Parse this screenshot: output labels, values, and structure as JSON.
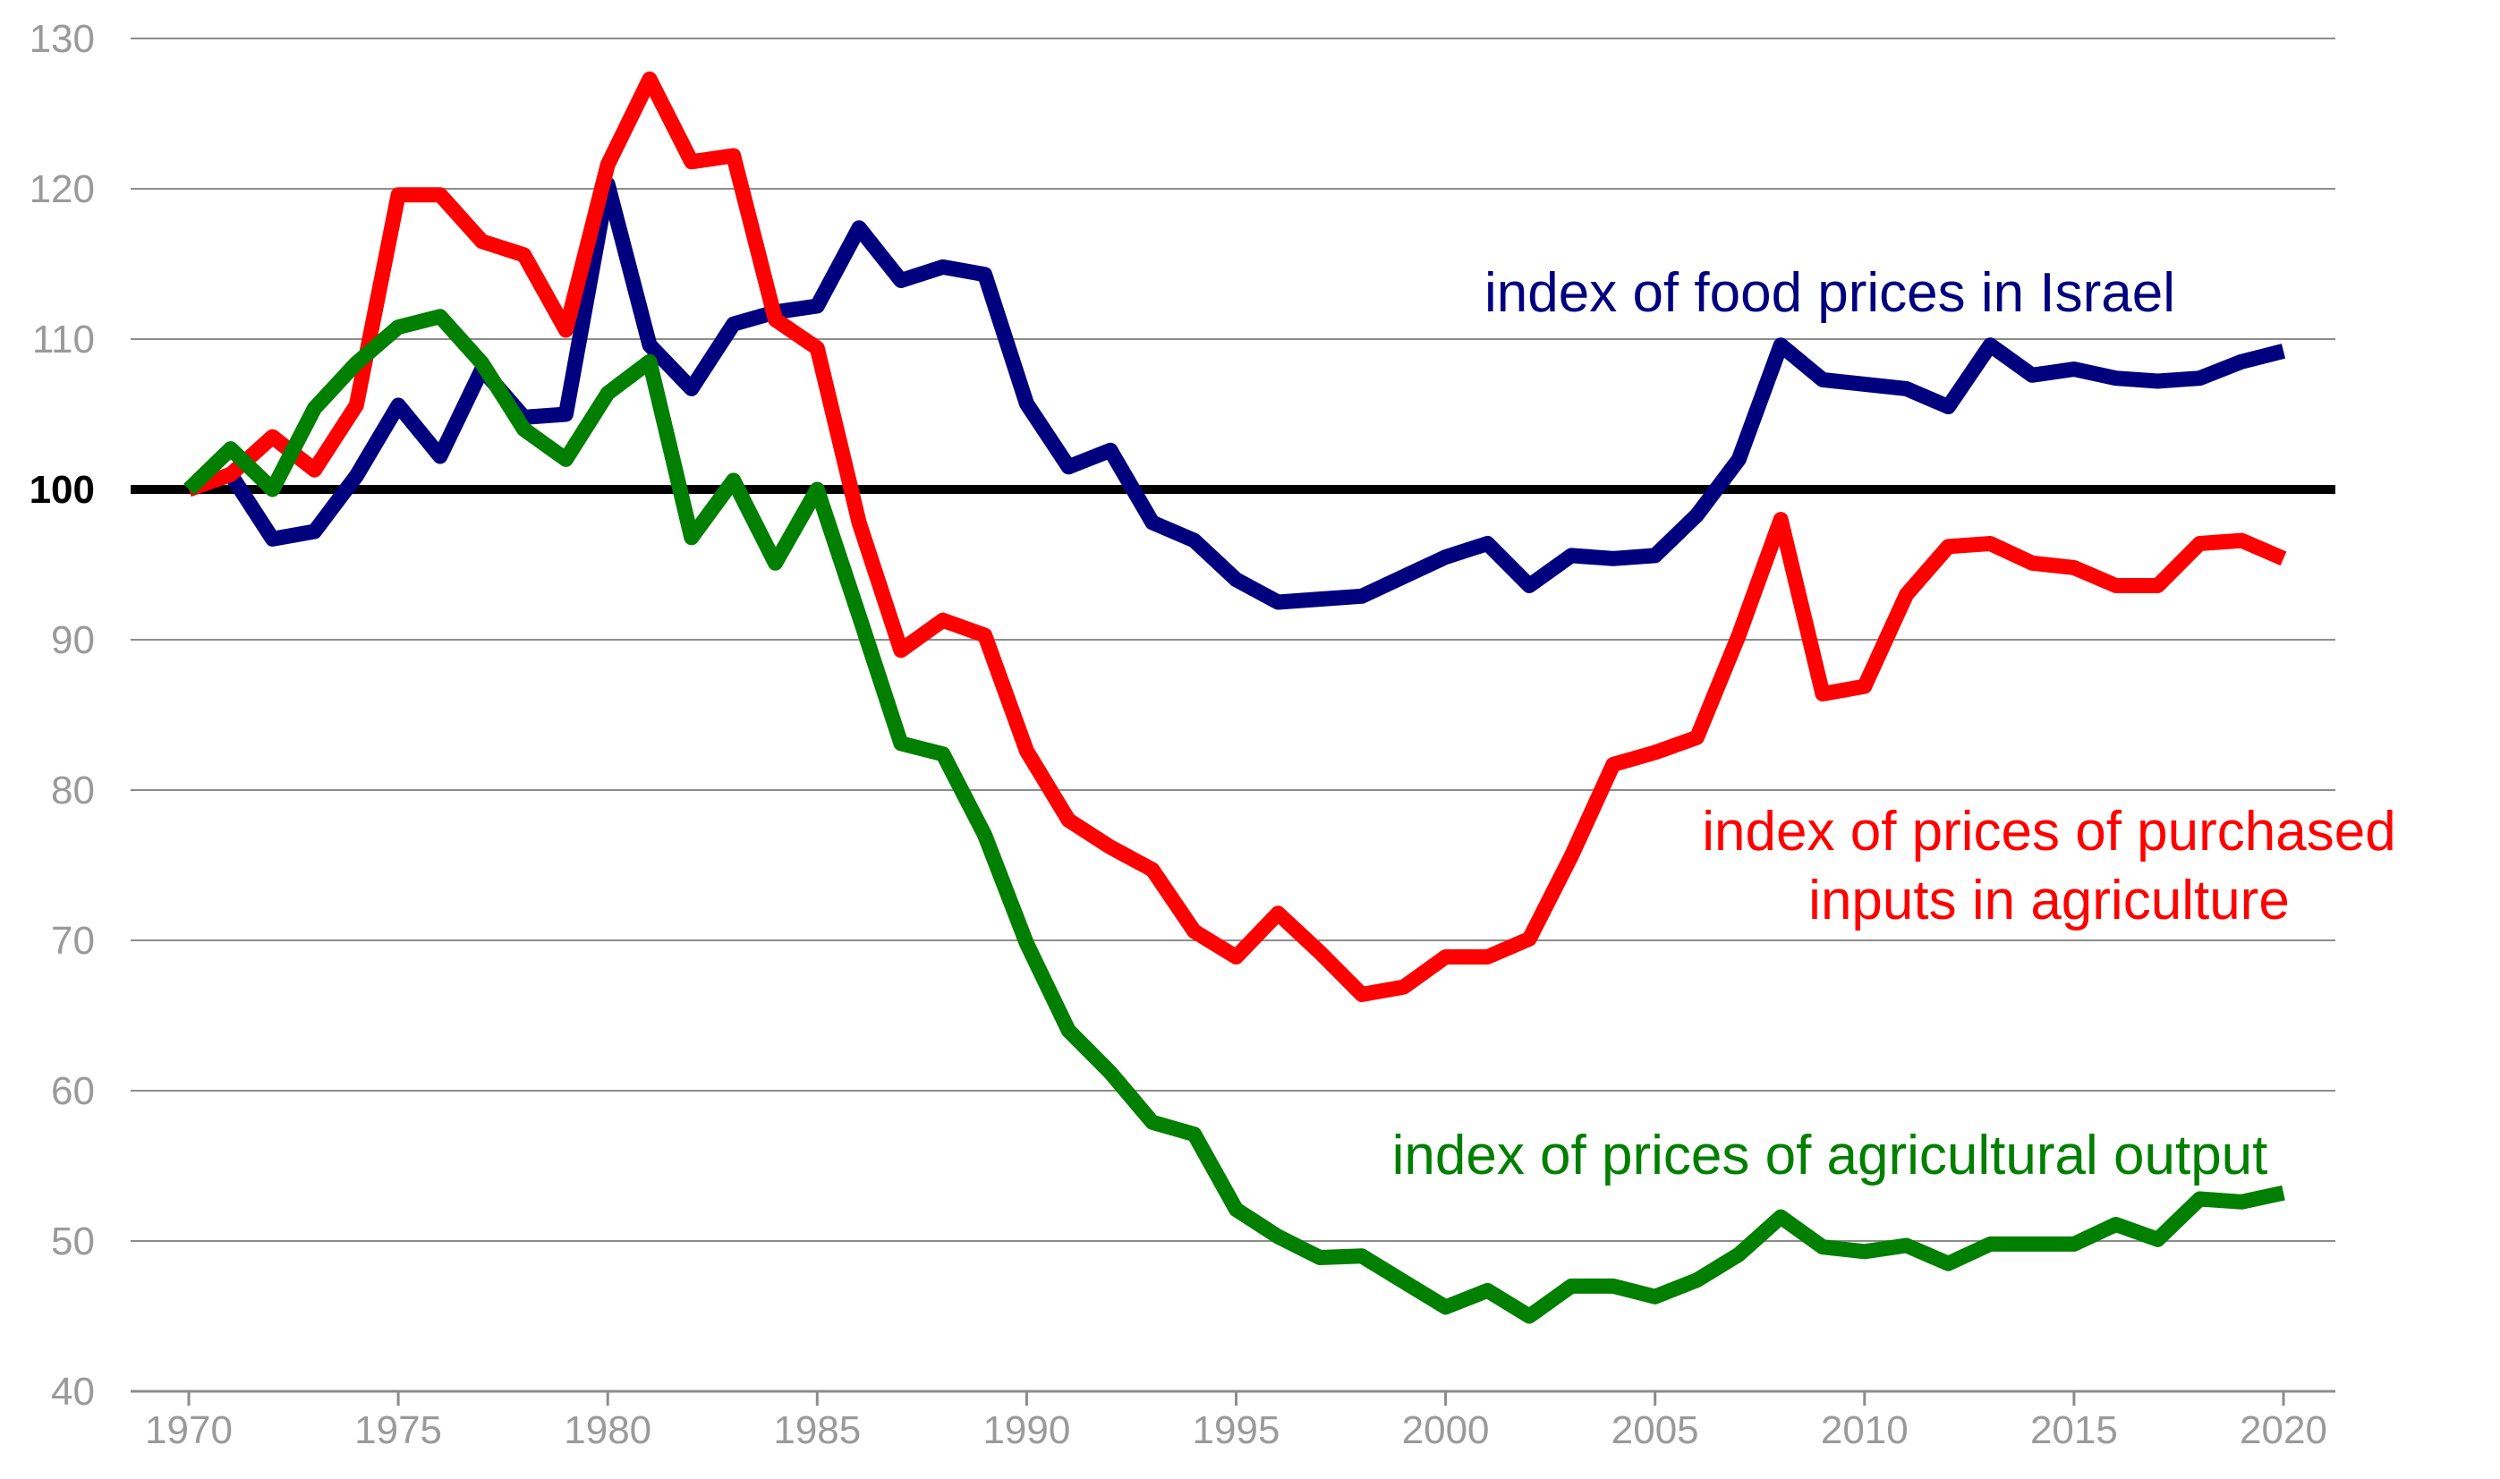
{
  "chart_data": {
    "type": "line",
    "title": "",
    "xlabel": "",
    "ylabel": "",
    "xlim": [
      1970,
      2020
    ],
    "ylim": [
      40,
      130
    ],
    "grid": true,
    "x_ticks": [
      "1970",
      "1975",
      "1980",
      "1985",
      "1990",
      "1995",
      "2000",
      "2005",
      "2010",
      "2015",
      "2020"
    ],
    "y_ticks": [
      "40",
      "50",
      "60",
      "70",
      "80",
      "90",
      "100",
      "110",
      "120",
      "130"
    ],
    "baseline": 100,
    "years": [
      1970,
      1971,
      1972,
      1973,
      1974,
      1975,
      1976,
      1977,
      1978,
      1979,
      1980,
      1981,
      1982,
      1983,
      1984,
      1985,
      1986,
      1987,
      1988,
      1989,
      1990,
      1991,
      1992,
      1993,
      1994,
      1995,
      1996,
      1997,
      1998,
      1999,
      2000,
      2001,
      2002,
      2003,
      2004,
      2005,
      2006,
      2007,
      2008,
      2009,
      2010,
      2011,
      2012,
      2013,
      2014,
      2015,
      2016,
      2017,
      2018,
      2019,
      2020
    ],
    "series": [
      {
        "name": "index of food prices in Israel",
        "color": "#00007f",
        "values": [
          100,
          101,
          96.7,
          97.2,
          100.9,
          105.6,
          102.2,
          108,
          104.8,
          105,
          120.3,
          109.6,
          106.7,
          111,
          111.8,
          112.2,
          117.4,
          113.9,
          114.8,
          114.3,
          105.7,
          101.5,
          102.6,
          97.8,
          96.6,
          94,
          92.5,
          92.7,
          92.9,
          94.2,
          95.5,
          96.4,
          93.6,
          95.6,
          95.4,
          95.6,
          98.3,
          102,
          109.6,
          107.3,
          107,
          106.7,
          105.5,
          109.6,
          107.6,
          108,
          107.4,
          107.2,
          107.4,
          108.5,
          109.2
        ],
        "labels": [
          "index of food prices in Israel"
        ]
      },
      {
        "name": "index of prices of purchased inputs in agriculture",
        "color": "#ff0000",
        "values": [
          100,
          101,
          103.5,
          101.3,
          105.6,
          119.6,
          119.6,
          116.5,
          115.6,
          110.6,
          121.6,
          127.3,
          121.8,
          122.2,
          111.3,
          109.4,
          97.8,
          89.3,
          91.3,
          90.3,
          82.6,
          78,
          76.2,
          74.7,
          70.6,
          68.9,
          71.8,
          69.2,
          66.4,
          66.9,
          68.9,
          68.9,
          70.1,
          75.6,
          81.7,
          82.5,
          83.5,
          90.3,
          98,
          86.4,
          86.9,
          93,
          96.2,
          96.4,
          95.1,
          94.8,
          93.6,
          93.6,
          96.4,
          96.6,
          95.4
        ],
        "labels": [
          "index of prices of purchased",
          "inputs in agriculture"
        ]
      },
      {
        "name": "index of prices of agricultural output",
        "color": "#007f00",
        "values": [
          100,
          102.7,
          100,
          105.4,
          108.4,
          110.8,
          111.5,
          108.4,
          104,
          102,
          106.4,
          108.5,
          96.8,
          100.6,
          95.1,
          100,
          91.6,
          83.1,
          82.4,
          77,
          69.8,
          64,
          61.2,
          57.9,
          57.1,
          52.1,
          50.3,
          48.9,
          49,
          47.3,
          45.6,
          46.7,
          45,
          47,
          47,
          46.3,
          47.4,
          49.1,
          51.6,
          49.6,
          49.3,
          49.7,
          48.5,
          49.8,
          49.8,
          49.8,
          51.1,
          50.1,
          52.8,
          52.6,
          53.2
        ],
        "labels": [
          "index of prices of agricultural output"
        ]
      }
    ]
  }
}
